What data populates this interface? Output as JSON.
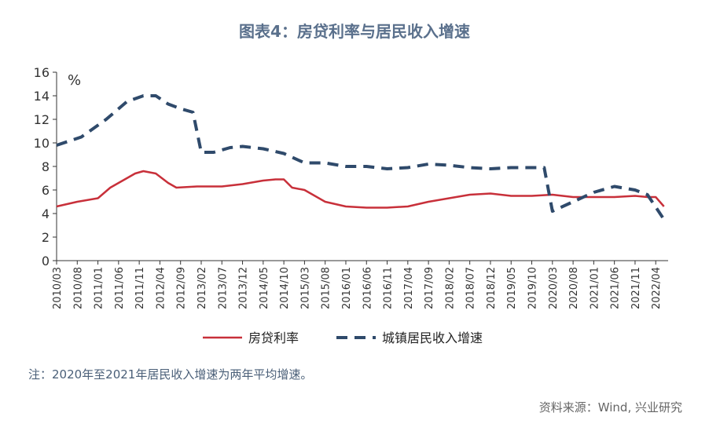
{
  "header": {
    "title": "图表4：房贷利率与居民收入增速"
  },
  "footer": {
    "note": "注：2020年至2021年居民收入增速为两年平均增速。",
    "source": "资料来源：Wind, 兴业研究"
  },
  "chart_data": {
    "type": "line",
    "unit_label": "%",
    "ylim": [
      0,
      16
    ],
    "yticks": [
      0,
      2,
      4,
      6,
      8,
      10,
      12,
      14,
      16
    ],
    "grid": false,
    "legend_position": "bottom",
    "x_tick_labels": [
      "2010/03",
      "2010/08",
      "2011/01",
      "2011/06",
      "2011/11",
      "2012/04",
      "2012/09",
      "2013/02",
      "2013/07",
      "2013/12",
      "2014/05",
      "2014/10",
      "2015/03",
      "2015/08",
      "2016/01",
      "2016/06",
      "2016/11",
      "2017/04",
      "2017/09",
      "2018/02",
      "2018/07",
      "2018/12",
      "2019/05",
      "2019/10",
      "2020/03",
      "2020/08",
      "2021/01",
      "2021/06",
      "2021/11",
      "2022/04"
    ],
    "series": [
      {
        "name": "房贷利率",
        "style": "solid",
        "color": "#c8303a",
        "points": [
          [
            "2010/03",
            4.6
          ],
          [
            "2010/08",
            5.0
          ],
          [
            "2011/01",
            5.3
          ],
          [
            "2011/04",
            6.2
          ],
          [
            "2011/08",
            7.0
          ],
          [
            "2011/10",
            7.4
          ],
          [
            "2011/12",
            7.6
          ],
          [
            "2012/03",
            7.4
          ],
          [
            "2012/06",
            6.6
          ],
          [
            "2012/08",
            6.2
          ],
          [
            "2013/01",
            6.3
          ],
          [
            "2013/07",
            6.3
          ],
          [
            "2013/12",
            6.5
          ],
          [
            "2014/05",
            6.8
          ],
          [
            "2014/08",
            6.9
          ],
          [
            "2014/10",
            6.9
          ],
          [
            "2014/12",
            6.2
          ],
          [
            "2015/03",
            6.0
          ],
          [
            "2015/08",
            5.0
          ],
          [
            "2016/01",
            4.6
          ],
          [
            "2016/06",
            4.5
          ],
          [
            "2016/11",
            4.5
          ],
          [
            "2017/04",
            4.6
          ],
          [
            "2017/09",
            5.0
          ],
          [
            "2018/02",
            5.3
          ],
          [
            "2018/07",
            5.6
          ],
          [
            "2018/12",
            5.7
          ],
          [
            "2019/05",
            5.5
          ],
          [
            "2019/10",
            5.5
          ],
          [
            "2020/03",
            5.6
          ],
          [
            "2020/08",
            5.4
          ],
          [
            "2021/01",
            5.4
          ],
          [
            "2021/06",
            5.4
          ],
          [
            "2021/11",
            5.5
          ],
          [
            "2022/02",
            5.4
          ],
          [
            "2022/04",
            5.4
          ],
          [
            "2022/06",
            4.6
          ]
        ]
      },
      {
        "name": "城镇居民收入增速",
        "style": "dashed",
        "color": "#2f4a6b",
        "points": [
          [
            "2010/03",
            9.8
          ],
          [
            "2010/09",
            10.5
          ],
          [
            "2011/03",
            12.0
          ],
          [
            "2011/08",
            13.5
          ],
          [
            "2011/12",
            14.0
          ],
          [
            "2012/03",
            14.0
          ],
          [
            "2012/06",
            13.3
          ],
          [
            "2012/09",
            12.9
          ],
          [
            "2012/12",
            12.6
          ],
          [
            "2013/02",
            9.2
          ],
          [
            "2013/05",
            9.2
          ],
          [
            "2013/09",
            9.6
          ],
          [
            "2013/12",
            9.7
          ],
          [
            "2014/05",
            9.5
          ],
          [
            "2014/10",
            9.1
          ],
          [
            "2015/03",
            8.3
          ],
          [
            "2015/08",
            8.3
          ],
          [
            "2016/01",
            8.0
          ],
          [
            "2016/06",
            8.0
          ],
          [
            "2016/11",
            7.8
          ],
          [
            "2017/04",
            7.9
          ],
          [
            "2017/09",
            8.2
          ],
          [
            "2018/02",
            8.1
          ],
          [
            "2018/07",
            7.9
          ],
          [
            "2018/12",
            7.8
          ],
          [
            "2019/05",
            7.9
          ],
          [
            "2019/10",
            7.9
          ],
          [
            "2020/01",
            7.9
          ],
          [
            "2020/03",
            4.2
          ],
          [
            "2020/08",
            5.0
          ],
          [
            "2021/01",
            5.8
          ],
          [
            "2021/06",
            6.3
          ],
          [
            "2021/11",
            6.0
          ],
          [
            "2022/02",
            5.6
          ],
          [
            "2022/06",
            3.5
          ]
        ]
      }
    ]
  }
}
